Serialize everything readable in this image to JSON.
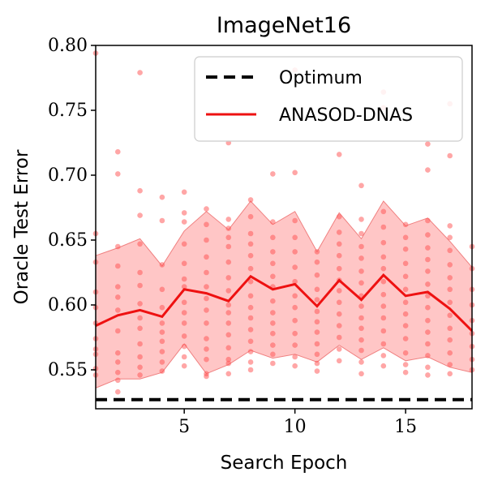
{
  "chart_data": {
    "type": "line",
    "title": "ImageNet16",
    "xlabel": "Search Epoch",
    "ylabel": "Oracle Test Error",
    "xlim": [
      1,
      18
    ],
    "ylim": [
      0.52,
      0.8
    ],
    "xticks": [
      5,
      10,
      15
    ],
    "yticks": [
      0.55,
      0.6,
      0.65,
      0.7,
      0.75,
      0.8
    ],
    "xtick_labels": [
      "5",
      "10",
      "15"
    ],
    "ytick_labels": [
      "0.55",
      "0.60",
      "0.65",
      "0.70",
      "0.75",
      "0.80"
    ],
    "legend_position": "top-right",
    "grid": false,
    "series": [
      {
        "name": "Optimum",
        "style": "dashed",
        "color": "#000000",
        "x": [
          1,
          18
        ],
        "y": [
          0.527,
          0.527
        ]
      },
      {
        "name": "ANASOD-DNAS",
        "style": "solid",
        "color": "#ee1111",
        "x": [
          1,
          2,
          3,
          4,
          5,
          6,
          7,
          8,
          9,
          10,
          11,
          12,
          13,
          14,
          15,
          16,
          17,
          18
        ],
        "y": [
          0.584,
          0.592,
          0.596,
          0.591,
          0.612,
          0.609,
          0.603,
          0.622,
          0.612,
          0.616,
          0.599,
          0.619,
          0.604,
          0.623,
          0.607,
          0.61,
          0.597,
          0.58
        ],
        "band_upper": [
          0.638,
          0.644,
          0.651,
          0.63,
          0.657,
          0.672,
          0.658,
          0.68,
          0.662,
          0.672,
          0.641,
          0.671,
          0.651,
          0.68,
          0.661,
          0.667,
          0.649,
          0.629
        ],
        "band_lower": [
          0.536,
          0.543,
          0.543,
          0.548,
          0.57,
          0.547,
          0.554,
          0.565,
          0.559,
          0.562,
          0.556,
          0.569,
          0.558,
          0.567,
          0.557,
          0.56,
          0.552,
          0.548
        ]
      }
    ],
    "scatter_points": [
      [
        1,
        0.794
      ],
      [
        1,
        0.655
      ],
      [
        1,
        0.633
      ],
      [
        1,
        0.61
      ],
      [
        1,
        0.598
      ],
      [
        1,
        0.586
      ],
      [
        1,
        0.574
      ],
      [
        1,
        0.566
      ],
      [
        1,
        0.562
      ],
      [
        1,
        0.551
      ],
      [
        1,
        0.546
      ],
      [
        2,
        0.718
      ],
      [
        2,
        0.701
      ],
      [
        2,
        0.645
      ],
      [
        2,
        0.63
      ],
      [
        2,
        0.614
      ],
      [
        2,
        0.606
      ],
      [
        2,
        0.596
      ],
      [
        2,
        0.58
      ],
      [
        2,
        0.563
      ],
      [
        2,
        0.556
      ],
      [
        2,
        0.548
      ],
      [
        2,
        0.542
      ],
      [
        2,
        0.533
      ],
      [
        3,
        0.779
      ],
      [
        3,
        0.688
      ],
      [
        3,
        0.669
      ],
      [
        3,
        0.647
      ],
      [
        3,
        0.625
      ],
      [
        3,
        0.615
      ],
      [
        3,
        0.601
      ],
      [
        3,
        0.59
      ],
      [
        3,
        0.582
      ],
      [
        3,
        0.57
      ],
      [
        3,
        0.56
      ],
      [
        3,
        0.552
      ],
      [
        3,
        0.546
      ],
      [
        4,
        0.683
      ],
      [
        4,
        0.665
      ],
      [
        4,
        0.631
      ],
      [
        4,
        0.612
      ],
      [
        4,
        0.598
      ],
      [
        4,
        0.586
      ],
      [
        4,
        0.579
      ],
      [
        4,
        0.572
      ],
      [
        4,
        0.564
      ],
      [
        4,
        0.556
      ],
      [
        4,
        0.549
      ],
      [
        5,
        0.687
      ],
      [
        5,
        0.671
      ],
      [
        5,
        0.664
      ],
      [
        5,
        0.647
      ],
      [
        5,
        0.632
      ],
      [
        5,
        0.62
      ],
      [
        5,
        0.614
      ],
      [
        5,
        0.602
      ],
      [
        5,
        0.594
      ],
      [
        5,
        0.586
      ],
      [
        5,
        0.576
      ],
      [
        5,
        0.568
      ],
      [
        5,
        0.56
      ],
      [
        5,
        0.553
      ],
      [
        6,
        0.674
      ],
      [
        6,
        0.662
      ],
      [
        6,
        0.65
      ],
      [
        6,
        0.637
      ],
      [
        6,
        0.625
      ],
      [
        6,
        0.614
      ],
      [
        6,
        0.605
      ],
      [
        6,
        0.596
      ],
      [
        6,
        0.586
      ],
      [
        6,
        0.574
      ],
      [
        6,
        0.566
      ],
      [
        6,
        0.558
      ],
      [
        6,
        0.547
      ],
      [
        6,
        0.545
      ],
      [
        7,
        0.725
      ],
      [
        7,
        0.666
      ],
      [
        7,
        0.659
      ],
      [
        7,
        0.652
      ],
      [
        7,
        0.645
      ],
      [
        7,
        0.633
      ],
      [
        7,
        0.621
      ],
      [
        7,
        0.611
      ],
      [
        7,
        0.6
      ],
      [
        7,
        0.594
      ],
      [
        7,
        0.586
      ],
      [
        7,
        0.577
      ],
      [
        7,
        0.567
      ],
      [
        7,
        0.558
      ],
      [
        7,
        0.555
      ],
      [
        7,
        0.547
      ],
      [
        8,
        0.681
      ],
      [
        8,
        0.668
      ],
      [
        8,
        0.655
      ],
      [
        8,
        0.647
      ],
      [
        8,
        0.638
      ],
      [
        8,
        0.628
      ],
      [
        8,
        0.618
      ],
      [
        8,
        0.607
      ],
      [
        8,
        0.598
      ],
      [
        8,
        0.59
      ],
      [
        8,
        0.581
      ],
      [
        8,
        0.572
      ],
      [
        8,
        0.564
      ],
      [
        8,
        0.556
      ],
      [
        8,
        0.55
      ],
      [
        9,
        0.701
      ],
      [
        9,
        0.664
      ],
      [
        9,
        0.652
      ],
      [
        9,
        0.641
      ],
      [
        9,
        0.632
      ],
      [
        9,
        0.622
      ],
      [
        9,
        0.614
      ],
      [
        9,
        0.603
      ],
      [
        9,
        0.594
      ],
      [
        9,
        0.586
      ],
      [
        9,
        0.578
      ],
      [
        9,
        0.569
      ],
      [
        9,
        0.562
      ],
      [
        9,
        0.555
      ],
      [
        10,
        0.781
      ],
      [
        10,
        0.702
      ],
      [
        10,
        0.665
      ],
      [
        10,
        0.652
      ],
      [
        10,
        0.641
      ],
      [
        10,
        0.629
      ],
      [
        10,
        0.618
      ],
      [
        10,
        0.607
      ],
      [
        10,
        0.598
      ],
      [
        10,
        0.588
      ],
      [
        10,
        0.578
      ],
      [
        10,
        0.569
      ],
      [
        10,
        0.56
      ],
      [
        10,
        0.553
      ],
      [
        11,
        0.641
      ],
      [
        11,
        0.633
      ],
      [
        11,
        0.623
      ],
      [
        11,
        0.612
      ],
      [
        11,
        0.604
      ],
      [
        11,
        0.595
      ],
      [
        11,
        0.587
      ],
      [
        11,
        0.579
      ],
      [
        11,
        0.57
      ],
      [
        11,
        0.562
      ],
      [
        11,
        0.555
      ],
      [
        11,
        0.549
      ],
      [
        12,
        0.716
      ],
      [
        12,
        0.668
      ],
      [
        12,
        0.656
      ],
      [
        12,
        0.647
      ],
      [
        12,
        0.638
      ],
      [
        12,
        0.628
      ],
      [
        12,
        0.619
      ],
      [
        12,
        0.611
      ],
      [
        12,
        0.602
      ],
      [
        12,
        0.593
      ],
      [
        12,
        0.584
      ],
      [
        12,
        0.575
      ],
      [
        12,
        0.566
      ],
      [
        12,
        0.557
      ],
      [
        13,
        0.692
      ],
      [
        13,
        0.666
      ],
      [
        13,
        0.655
      ],
      [
        13,
        0.645
      ],
      [
        13,
        0.636
      ],
      [
        13,
        0.626
      ],
      [
        13,
        0.617
      ],
      [
        13,
        0.607
      ],
      [
        13,
        0.599
      ],
      [
        13,
        0.59
      ],
      [
        13,
        0.582
      ],
      [
        13,
        0.573
      ],
      [
        13,
        0.565
      ],
      [
        13,
        0.556
      ],
      [
        13,
        0.547
      ],
      [
        14,
        0.764
      ],
      [
        14,
        0.752
      ],
      [
        14,
        0.672
      ],
      [
        14,
        0.66
      ],
      [
        14,
        0.648
      ],
      [
        14,
        0.637
      ],
      [
        14,
        0.628
      ],
      [
        14,
        0.618
      ],
      [
        14,
        0.608
      ],
      [
        14,
        0.599
      ],
      [
        14,
        0.59
      ],
      [
        14,
        0.58
      ],
      [
        14,
        0.57
      ],
      [
        14,
        0.561
      ],
      [
        14,
        0.553
      ],
      [
        15,
        0.662
      ],
      [
        15,
        0.652
      ],
      [
        15,
        0.643
      ],
      [
        15,
        0.632
      ],
      [
        15,
        0.622
      ],
      [
        15,
        0.612
      ],
      [
        15,
        0.602
      ],
      [
        15,
        0.593
      ],
      [
        15,
        0.584
      ],
      [
        15,
        0.574
      ],
      [
        15,
        0.563
      ],
      [
        15,
        0.554
      ],
      [
        15,
        0.548
      ],
      [
        16,
        0.724
      ],
      [
        16,
        0.704
      ],
      [
        16,
        0.665
      ],
      [
        16,
        0.654
      ],
      [
        16,
        0.644
      ],
      [
        16,
        0.635
      ],
      [
        16,
        0.626
      ],
      [
        16,
        0.616
      ],
      [
        16,
        0.607
      ],
      [
        16,
        0.598
      ],
      [
        16,
        0.588
      ],
      [
        16,
        0.579
      ],
      [
        16,
        0.57
      ],
      [
        16,
        0.561
      ],
      [
        16,
        0.552
      ],
      [
        16,
        0.546
      ],
      [
        17,
        0.755
      ],
      [
        17,
        0.715
      ],
      [
        17,
        0.661
      ],
      [
        17,
        0.652
      ],
      [
        17,
        0.642
      ],
      [
        17,
        0.631
      ],
      [
        17,
        0.621
      ],
      [
        17,
        0.612
      ],
      [
        17,
        0.602
      ],
      [
        17,
        0.592
      ],
      [
        17,
        0.582
      ],
      [
        17,
        0.573
      ],
      [
        17,
        0.563
      ],
      [
        17,
        0.554
      ],
      [
        17,
        0.547
      ],
      [
        18,
        0.645
      ],
      [
        18,
        0.628
      ],
      [
        18,
        0.612
      ],
      [
        18,
        0.6
      ],
      [
        18,
        0.588
      ],
      [
        18,
        0.578
      ],
      [
        18,
        0.568
      ],
      [
        18,
        0.558
      ],
      [
        18,
        0.55
      ]
    ],
    "colors": {
      "mean_line": "#ee1111",
      "band": "#ffb3b3",
      "points": "#ff4d4d",
      "optimum": "#000000"
    }
  }
}
